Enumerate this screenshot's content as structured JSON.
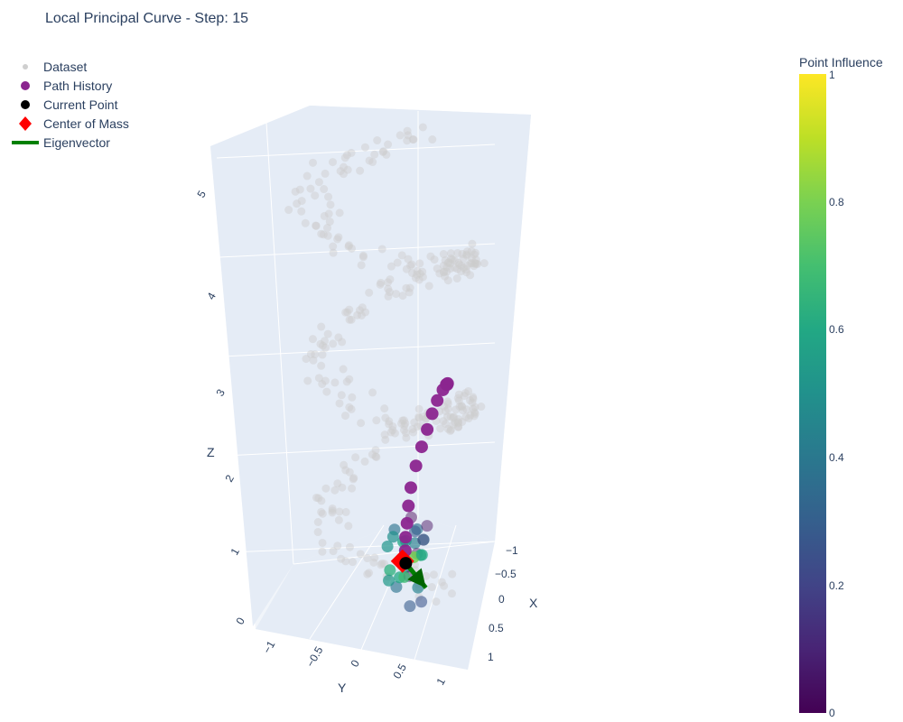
{
  "chart_data": {
    "type": "scatter",
    "subtype": "3d-scatter",
    "title": "Local Principal Curve - Step: 15",
    "axes": {
      "x": {
        "label": "X",
        "ticks": [
          "−1",
          "−0.5",
          "0",
          "0.5",
          "1"
        ],
        "range": [
          -1.2,
          1.2
        ]
      },
      "y": {
        "label": "Y",
        "ticks": [
          "−1",
          "−0.5",
          "0",
          "0.5",
          "1"
        ],
        "range": [
          -1.2,
          1.2
        ]
      },
      "z": {
        "label": "Z",
        "ticks": [
          "0",
          "1",
          "2",
          "3",
          "4",
          "5"
        ],
        "range": [
          0,
          5.5
        ]
      }
    },
    "grid": true,
    "legend_position": "top-left",
    "legend": [
      {
        "name": "Dataset",
        "symbol": "circle-small",
        "color": "#cfcfcf"
      },
      {
        "name": "Path History",
        "symbol": "circle",
        "color": "#8b258f"
      },
      {
        "name": "Current Point",
        "symbol": "circle",
        "color": "#000000"
      },
      {
        "name": "Center of Mass",
        "symbol": "diamond",
        "color": "#ff0000"
      },
      {
        "name": "Eigenvector",
        "symbol": "line",
        "color": "#008000"
      }
    ],
    "colorbar": {
      "title": "Point Influence",
      "colorscale": "viridis",
      "range": [
        0,
        1
      ],
      "ticks": [
        "0",
        "0.2",
        "0.4",
        "0.6",
        "0.8",
        "1"
      ]
    },
    "path_history": {
      "x": [
        -0.15,
        -0.08,
        0.0,
        0.08,
        0.15,
        0.22,
        0.28,
        0.32,
        0.35,
        0.38,
        0.4,
        0.42,
        0.43,
        0.44
      ],
      "y": [
        -1.0,
        -0.95,
        -0.85,
        -0.7,
        -0.5,
        -0.3,
        -0.1,
        0.1,
        0.3,
        0.5,
        0.62,
        0.72,
        0.8,
        0.85
      ],
      "z": [
        2.0,
        2.05,
        2.1,
        2.12,
        2.1,
        2.05,
        1.97,
        1.87,
        1.75,
        1.6,
        1.45,
        1.3,
        1.18,
        1.05
      ]
    },
    "current_point": {
      "x": 0.45,
      "y": 0.88,
      "z": 0.92
    },
    "center_of_mass": {
      "x": 0.42,
      "y": 0.9,
      "z": 0.95
    },
    "eigenvector": {
      "from": [
        0.45,
        0.88,
        0.92
      ],
      "to": [
        0.55,
        0.55,
        0.45
      ]
    }
  }
}
